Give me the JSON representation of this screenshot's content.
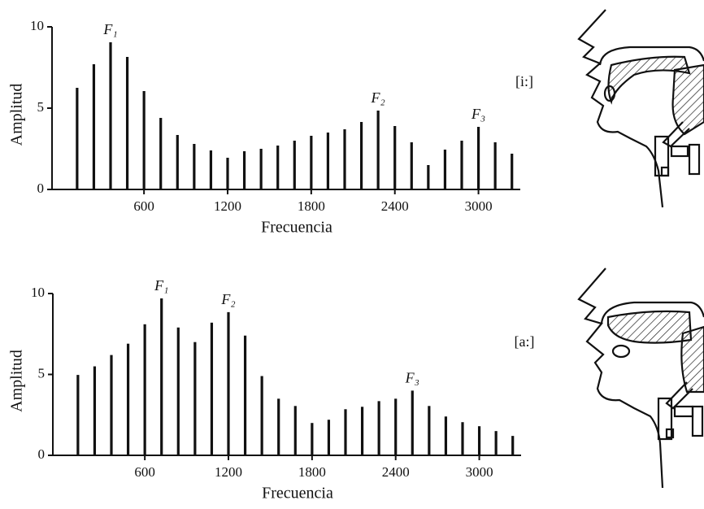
{
  "chart_data": [
    {
      "type": "bar",
      "x_label": "Frecuencia",
      "y_label": "Amplitud",
      "label": "[i:]",
      "xlim": [
        -60,
        3300
      ],
      "xticks": [
        600,
        1200,
        1800,
        2400,
        3000
      ],
      "ylim": [
        0,
        10
      ],
      "yticks": [
        0,
        5,
        10
      ],
      "color": "#111111",
      "x": [
        120,
        240,
        360,
        480,
        600,
        720,
        840,
        960,
        1080,
        1200,
        1320,
        1440,
        1560,
        1680,
        1800,
        1920,
        2040,
        2160,
        2280,
        2400,
        2520,
        2640,
        2760,
        2880,
        3000,
        3120,
        3240
      ],
      "values": [
        6.25,
        7.7,
        9.05,
        8.15,
        6.05,
        4.4,
        3.35,
        2.8,
        2.4,
        1.95,
        2.35,
        2.5,
        2.7,
        3.0,
        3.3,
        3.5,
        3.7,
        4.15,
        4.85,
        3.9,
        2.9,
        1.5,
        2.45,
        3.0,
        3.85,
        2.9,
        2.2
      ],
      "annotations": [
        {
          "text": "F₁",
          "x": 360
        },
        {
          "text": "F₂",
          "x": 2280
        },
        {
          "text": "F₃",
          "x": 3000
        }
      ]
    },
    {
      "type": "bar",
      "x_label": "Frecuencia",
      "y_label": "Amplitud",
      "label": "[a:]",
      "xlim": [
        -60,
        3300
      ],
      "xticks": [
        600,
        1200,
        1800,
        2400,
        3000
      ],
      "ylim": [
        0,
        10
      ],
      "yticks": [
        0,
        5,
        10
      ],
      "color": "#111111",
      "x": [
        120,
        240,
        360,
        480,
        600,
        720,
        840,
        960,
        1080,
        1200,
        1320,
        1440,
        1560,
        1680,
        1800,
        1920,
        2040,
        2160,
        2280,
        2400,
        2520,
        2640,
        2760,
        2880,
        3000,
        3120,
        3240
      ],
      "values": [
        4.97,
        5.5,
        6.2,
        6.9,
        8.1,
        9.7,
        7.9,
        7.0,
        8.2,
        8.85,
        7.4,
        4.9,
        3.5,
        3.05,
        2.0,
        2.2,
        2.85,
        3.0,
        3.35,
        3.5,
        4.0,
        3.05,
        2.4,
        2.05,
        1.8,
        1.5,
        1.2
      ],
      "annotations": [
        {
          "text": "F₁",
          "x": 720
        },
        {
          "text": "F₂",
          "x": 1200
        },
        {
          "text": "F₃",
          "x": 2520
        }
      ]
    }
  ]
}
